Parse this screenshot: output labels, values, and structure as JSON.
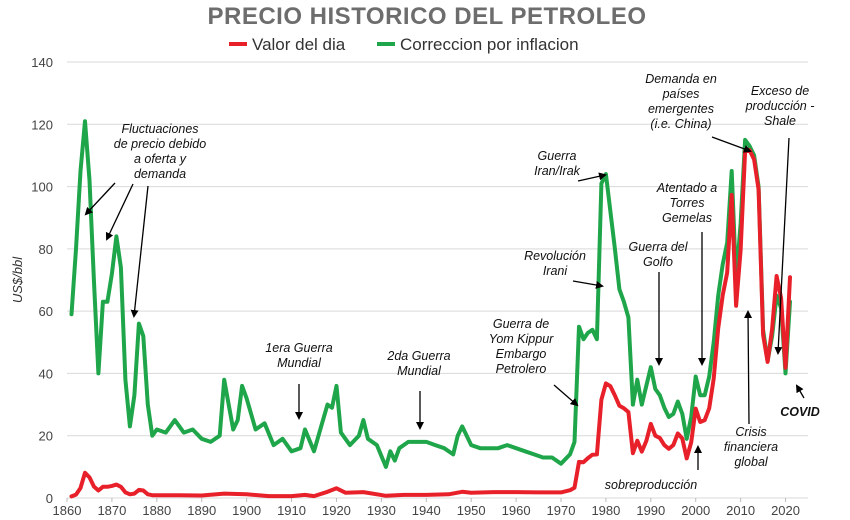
{
  "chart_data": {
    "type": "line",
    "title": "PRECIO HISTORICO DEL PETROLEO",
    "xlabel": "",
    "ylabel": "US$/bbl",
    "xlim": [
      1860,
      2025
    ],
    "ylim": [
      0,
      140
    ],
    "x_ticks": [
      1860,
      1870,
      1880,
      1890,
      1900,
      1910,
      1920,
      1930,
      1940,
      1950,
      1960,
      1970,
      1980,
      1990,
      2000,
      2010,
      2020
    ],
    "y_ticks": [
      0,
      20,
      40,
      60,
      80,
      100,
      120,
      140
    ],
    "grid": true,
    "legend_position": "top",
    "colors": {
      "nominal": "#e8202a",
      "real": "#1fa64a",
      "title": "#6d6d6d"
    },
    "series": [
      {
        "name": "Valor del dia",
        "color": "#e8202a",
        "points": [
          [
            1861,
            0.5
          ],
          [
            1862,
            1.1
          ],
          [
            1863,
            3.2
          ],
          [
            1864,
            8.1
          ],
          [
            1865,
            6.6
          ],
          [
            1866,
            3.7
          ],
          [
            1867,
            2.4
          ],
          [
            1868,
            3.6
          ],
          [
            1869,
            3.6
          ],
          [
            1870,
            3.9
          ],
          [
            1871,
            4.3
          ],
          [
            1872,
            3.6
          ],
          [
            1873,
            1.8
          ],
          [
            1874,
            1.2
          ],
          [
            1875,
            1.4
          ],
          [
            1876,
            2.6
          ],
          [
            1877,
            2.4
          ],
          [
            1878,
            1.2
          ],
          [
            1879,
            0.9
          ],
          [
            1880,
            0.9
          ],
          [
            1885,
            0.9
          ],
          [
            1890,
            0.8
          ],
          [
            1895,
            1.4
          ],
          [
            1900,
            1.2
          ],
          [
            1905,
            0.6
          ],
          [
            1910,
            0.6
          ],
          [
            1913,
            1.0
          ],
          [
            1915,
            0.6
          ],
          [
            1918,
            2.0
          ],
          [
            1920,
            3.1
          ],
          [
            1922,
            1.7
          ],
          [
            1926,
            1.9
          ],
          [
            1931,
            0.7
          ],
          [
            1935,
            1.0
          ],
          [
            1940,
            1.0
          ],
          [
            1945,
            1.2
          ],
          [
            1948,
            2.0
          ],
          [
            1950,
            1.7
          ],
          [
            1955,
            1.9
          ],
          [
            1960,
            1.9
          ],
          [
            1965,
            1.8
          ],
          [
            1970,
            1.8
          ],
          [
            1972,
            2.5
          ],
          [
            1973,
            3.3
          ],
          [
            1974,
            11.6
          ],
          [
            1975,
            11.5
          ],
          [
            1976,
            12.8
          ],
          [
            1977,
            13.9
          ],
          [
            1978,
            14.0
          ],
          [
            1979,
            31.6
          ],
          [
            1980,
            36.8
          ],
          [
            1981,
            35.9
          ],
          [
            1982,
            32.9
          ],
          [
            1983,
            29.6
          ],
          [
            1984,
            28.8
          ],
          [
            1985,
            27.6
          ],
          [
            1986,
            14.4
          ],
          [
            1987,
            18.4
          ],
          [
            1988,
            14.9
          ],
          [
            1989,
            18.3
          ],
          [
            1990,
            23.8
          ],
          [
            1991,
            20.0
          ],
          [
            1992,
            19.3
          ],
          [
            1993,
            17.0
          ],
          [
            1994,
            15.8
          ],
          [
            1995,
            17.0
          ],
          [
            1996,
            20.7
          ],
          [
            1997,
            19.1
          ],
          [
            1998,
            12.7
          ],
          [
            1999,
            17.9
          ],
          [
            2000,
            28.7
          ],
          [
            2001,
            24.4
          ],
          [
            2002,
            25.0
          ],
          [
            2003,
            28.8
          ],
          [
            2004,
            38.3
          ],
          [
            2005,
            54.5
          ],
          [
            2006,
            65.1
          ],
          [
            2007,
            72.4
          ],
          [
            2008,
            97.3
          ],
          [
            2009,
            61.7
          ],
          [
            2010,
            79.5
          ],
          [
            2011,
            111.3
          ],
          [
            2012,
            111.7
          ],
          [
            2013,
            108.7
          ],
          [
            2014,
            99.0
          ],
          [
            2015,
            52.4
          ],
          [
            2016,
            43.7
          ],
          [
            2017,
            54.2
          ],
          [
            2018,
            71.3
          ],
          [
            2019,
            64.2
          ],
          [
            2020,
            41.8
          ],
          [
            2021,
            70.9
          ]
        ]
      },
      {
        "name": "Correccion por inflacion",
        "color": "#1fa64a",
        "points": [
          [
            1861,
            59
          ],
          [
            1862,
            80
          ],
          [
            1863,
            105
          ],
          [
            1864,
            121
          ],
          [
            1865,
            102
          ],
          [
            1866,
            70
          ],
          [
            1867,
            40
          ],
          [
            1868,
            63
          ],
          [
            1869,
            63
          ],
          [
            1870,
            72
          ],
          [
            1871,
            84
          ],
          [
            1872,
            74
          ],
          [
            1873,
            38
          ],
          [
            1874,
            23
          ],
          [
            1875,
            33
          ],
          [
            1876,
            56
          ],
          [
            1877,
            52
          ],
          [
            1878,
            30
          ],
          [
            1879,
            20
          ],
          [
            1880,
            22
          ],
          [
            1882,
            21
          ],
          [
            1884,
            25
          ],
          [
            1886,
            21
          ],
          [
            1888,
            22
          ],
          [
            1890,
            19
          ],
          [
            1892,
            18
          ],
          [
            1894,
            20
          ],
          [
            1895,
            38
          ],
          [
            1896,
            30
          ],
          [
            1897,
            22
          ],
          [
            1898,
            25
          ],
          [
            1899,
            36
          ],
          [
            1900,
            32
          ],
          [
            1902,
            22
          ],
          [
            1904,
            24
          ],
          [
            1906,
            17
          ],
          [
            1908,
            19
          ],
          [
            1910,
            15
          ],
          [
            1912,
            16
          ],
          [
            1913,
            22
          ],
          [
            1915,
            15
          ],
          [
            1917,
            25
          ],
          [
            1918,
            30
          ],
          [
            1919,
            29
          ],
          [
            1920,
            36
          ],
          [
            1921,
            21
          ],
          [
            1923,
            17
          ],
          [
            1925,
            20
          ],
          [
            1926,
            25
          ],
          [
            1927,
            19
          ],
          [
            1929,
            17
          ],
          [
            1931,
            10
          ],
          [
            1932,
            15
          ],
          [
            1933,
            12
          ],
          [
            1934,
            16
          ],
          [
            1936,
            18
          ],
          [
            1938,
            18
          ],
          [
            1940,
            18
          ],
          [
            1942,
            17
          ],
          [
            1944,
            16
          ],
          [
            1946,
            14
          ],
          [
            1947,
            20
          ],
          [
            1948,
            23
          ],
          [
            1950,
            17
          ],
          [
            1952,
            16
          ],
          [
            1954,
            16
          ],
          [
            1956,
            16
          ],
          [
            1958,
            17
          ],
          [
            1960,
            16
          ],
          [
            1962,
            15
          ],
          [
            1964,
            14
          ],
          [
            1966,
            13
          ],
          [
            1968,
            13
          ],
          [
            1970,
            11
          ],
          [
            1972,
            14
          ],
          [
            1973,
            18
          ],
          [
            1974,
            55
          ],
          [
            1975,
            51
          ],
          [
            1976,
            53
          ],
          [
            1977,
            54
          ],
          [
            1978,
            51
          ],
          [
            1979,
            101
          ],
          [
            1980,
            104
          ],
          [
            1981,
            92
          ],
          [
            1982,
            80
          ],
          [
            1983,
            67
          ],
          [
            1984,
            63
          ],
          [
            1985,
            58
          ],
          [
            1986,
            30
          ],
          [
            1987,
            38
          ],
          [
            1988,
            30
          ],
          [
            1989,
            36
          ],
          [
            1990,
            42
          ],
          [
            1991,
            35
          ],
          [
            1992,
            33
          ],
          [
            1993,
            29
          ],
          [
            1994,
            26
          ],
          [
            1995,
            27
          ],
          [
            1996,
            31
          ],
          [
            1997,
            27
          ],
          [
            1998,
            19
          ],
          [
            1999,
            26
          ],
          [
            2000,
            39
          ],
          [
            2001,
            33
          ],
          [
            2002,
            33
          ],
          [
            2003,
            39
          ],
          [
            2004,
            50
          ],
          [
            2005,
            65
          ],
          [
            2006,
            75
          ],
          [
            2007,
            82
          ],
          [
            2008,
            105
          ],
          [
            2009,
            70
          ],
          [
            2010,
            88
          ],
          [
            2011,
            115
          ],
          [
            2012,
            113
          ],
          [
            2013,
            110
          ],
          [
            2014,
            100
          ],
          [
            2015,
            54
          ],
          [
            2016,
            44
          ],
          [
            2017,
            52
          ],
          [
            2018,
            65
          ],
          [
            2019,
            61
          ],
          [
            2020,
            40
          ],
          [
            2021,
            63
          ]
        ]
      }
    ],
    "annotations": [
      {
        "id": "fluct",
        "lines": [
          "Fluctuaciones",
          "de precio debido",
          "a oferta y",
          "demanda"
        ]
      },
      {
        "id": "ww1",
        "lines": [
          "1era Guerra",
          "Mundial"
        ]
      },
      {
        "id": "ww2",
        "lines": [
          "2da Guerra",
          "Mundial"
        ]
      },
      {
        "id": "yomkippur",
        "lines": [
          "Guerra de",
          "Yom Kippur",
          "Embargo",
          "Petrolero"
        ]
      },
      {
        "id": "iranirak",
        "lines": [
          "Guerra",
          "Iran/Irak"
        ]
      },
      {
        "id": "revolucion",
        "lines": [
          "Revolución",
          "Irani"
        ]
      },
      {
        "id": "golfo",
        "lines": [
          "Guerra del",
          "Golfo"
        ]
      },
      {
        "id": "torres",
        "lines": [
          "Atentado a",
          "Torres",
          "Gemelas"
        ]
      },
      {
        "id": "emergentes",
        "lines": [
          "Demanda en",
          "países",
          "emergentes",
          "(i.e. China)"
        ]
      },
      {
        "id": "shale",
        "lines": [
          "Exceso de",
          "producción -",
          "Shale"
        ]
      },
      {
        "id": "crisis",
        "lines": [
          "Crisis",
          "financiera",
          "global"
        ]
      },
      {
        "id": "sobre",
        "lines": [
          "sobreproducción"
        ]
      },
      {
        "id": "covid",
        "lines": [
          "COVID"
        ]
      }
    ]
  }
}
